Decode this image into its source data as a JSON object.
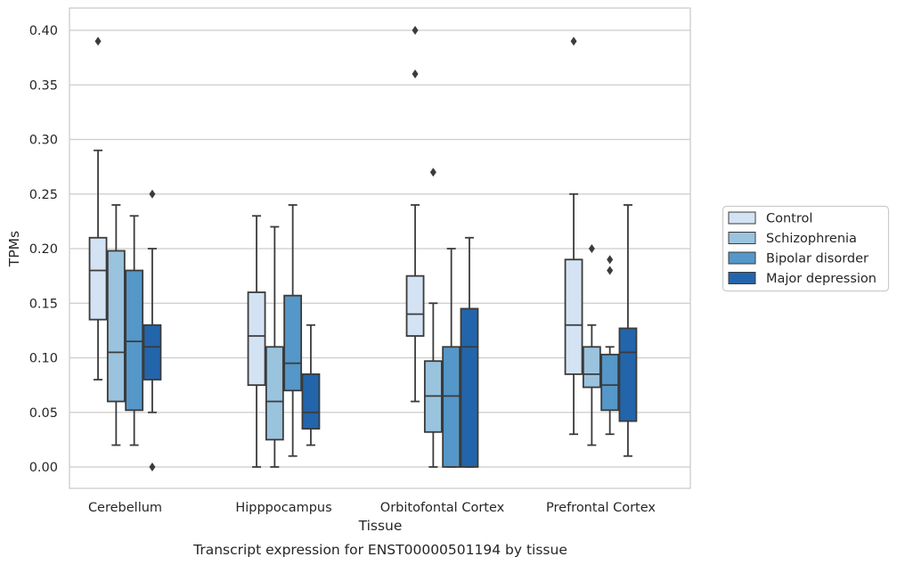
{
  "chart_data": {
    "type": "boxplot",
    "title": "",
    "xlabel": "Tissue",
    "ylabel": "TPMs",
    "caption": "Transcript expression for ENST00000501194 by tissue",
    "ylim": [
      -0.02,
      0.42
    ],
    "yticks": [
      0.0,
      0.05,
      0.1,
      0.15,
      0.2,
      0.25,
      0.3,
      0.35,
      0.4
    ],
    "ytick_labels": [
      "0.00",
      "0.05",
      "0.10",
      "0.15",
      "0.20",
      "0.25",
      "0.30",
      "0.35",
      "0.40"
    ],
    "grid": "horizontal",
    "legend_position": "right",
    "categories": [
      "Cerebellum",
      "Hipppocampus",
      "Orbitofontal Cortex",
      "Prefrontal Cortex"
    ],
    "series": [
      {
        "name": "Control",
        "color": "#d4e3f3",
        "boxes": [
          {
            "whislo": 0.08,
            "q1": 0.135,
            "med": 0.18,
            "q3": 0.21,
            "whishi": 0.29,
            "fliers": [
              0.39
            ]
          },
          {
            "whislo": 0.0,
            "q1": 0.075,
            "med": 0.12,
            "q3": 0.16,
            "whishi": 0.23,
            "fliers": []
          },
          {
            "whislo": 0.06,
            "q1": 0.12,
            "med": 0.14,
            "q3": 0.175,
            "whishi": 0.24,
            "fliers": [
              0.36,
              0.4
            ]
          },
          {
            "whislo": 0.03,
            "q1": 0.085,
            "med": 0.13,
            "q3": 0.19,
            "whishi": 0.25,
            "fliers": [
              0.39
            ]
          }
        ]
      },
      {
        "name": "Schizophrenia",
        "color": "#9ac3de",
        "boxes": [
          {
            "whislo": 0.02,
            "q1": 0.06,
            "med": 0.105,
            "q3": 0.198,
            "whishi": 0.24,
            "fliers": []
          },
          {
            "whislo": 0.0,
            "q1": 0.025,
            "med": 0.06,
            "q3": 0.11,
            "whishi": 0.22,
            "fliers": []
          },
          {
            "whislo": 0.0,
            "q1": 0.032,
            "med": 0.065,
            "q3": 0.097,
            "whishi": 0.15,
            "fliers": [
              0.27
            ]
          },
          {
            "whislo": 0.02,
            "q1": 0.073,
            "med": 0.085,
            "q3": 0.11,
            "whishi": 0.13,
            "fliers": [
              0.2
            ]
          }
        ]
      },
      {
        "name": "Bipolar disorder",
        "color": "#5597c8",
        "boxes": [
          {
            "whislo": 0.02,
            "q1": 0.052,
            "med": 0.115,
            "q3": 0.18,
            "whishi": 0.23,
            "fliers": []
          },
          {
            "whislo": 0.01,
            "q1": 0.07,
            "med": 0.095,
            "q3": 0.157,
            "whishi": 0.24,
            "fliers": []
          },
          {
            "whislo": 0.0,
            "q1": 0.0,
            "med": 0.065,
            "q3": 0.11,
            "whishi": 0.2,
            "fliers": []
          },
          {
            "whislo": 0.03,
            "q1": 0.052,
            "med": 0.075,
            "q3": 0.103,
            "whishi": 0.11,
            "fliers": [
              0.18,
              0.19
            ]
          }
        ]
      },
      {
        "name": "Major depression",
        "color": "#2365ab",
        "boxes": [
          {
            "whislo": 0.05,
            "q1": 0.08,
            "med": 0.11,
            "q3": 0.13,
            "whishi": 0.2,
            "fliers": [
              0.0,
              0.25
            ]
          },
          {
            "whislo": 0.02,
            "q1": 0.035,
            "med": 0.05,
            "q3": 0.085,
            "whishi": 0.13,
            "fliers": []
          },
          {
            "whislo": 0.0,
            "q1": 0.0,
            "med": 0.11,
            "q3": 0.145,
            "whishi": 0.21,
            "fliers": []
          },
          {
            "whislo": 0.01,
            "q1": 0.042,
            "med": 0.105,
            "q3": 0.127,
            "whishi": 0.24,
            "fliers": []
          }
        ]
      }
    ],
    "colors": {
      "edge": "#3b3b3b",
      "grid": "#cccccc",
      "frame": "#cccccc",
      "text": "#262626"
    }
  }
}
